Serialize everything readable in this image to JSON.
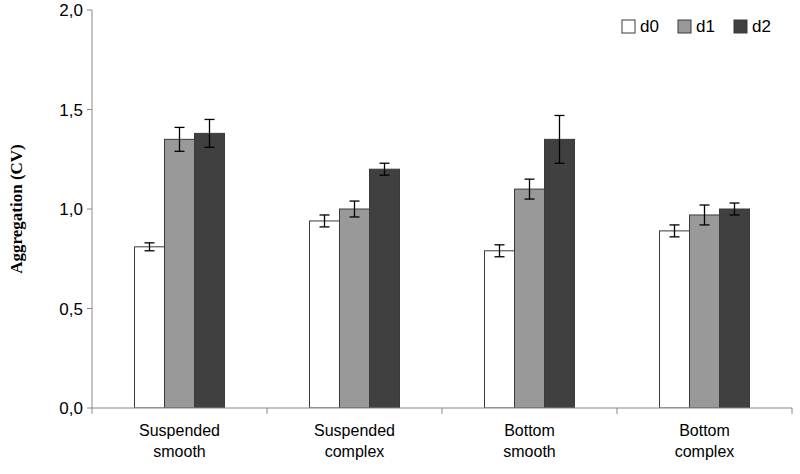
{
  "chart_data": {
    "type": "bar",
    "y_label": "Aggregation (CV)",
    "categories": [
      "Suspended smooth",
      "Suspended complex",
      "Bottom smooth",
      "Bottom complex"
    ],
    "series": [
      {
        "name": "d0",
        "color": "#ffffff",
        "values": [
          0.81,
          0.94,
          0.79,
          0.89
        ],
        "errors": [
          0.02,
          0.03,
          0.03,
          0.03
        ]
      },
      {
        "name": "d1",
        "color": "#999999",
        "values": [
          1.35,
          1.0,
          1.1,
          0.97
        ],
        "errors": [
          0.06,
          0.04,
          0.05,
          0.05
        ]
      },
      {
        "name": "d2",
        "color": "#404040",
        "values": [
          1.38,
          1.2,
          1.35,
          1.0
        ],
        "errors": [
          0.07,
          0.03,
          0.12,
          0.03
        ]
      }
    ],
    "ylim": [
      0,
      2
    ],
    "yticks": [
      {
        "value": 0,
        "label": "0,0"
      },
      {
        "value": 0.5,
        "label": "0,5"
      },
      {
        "value": 1,
        "label": "1,0"
      },
      {
        "value": 1.5,
        "label": "1,5"
      },
      {
        "value": 2,
        "label": "2,0"
      }
    ],
    "grid": false,
    "legend": "top-right"
  }
}
